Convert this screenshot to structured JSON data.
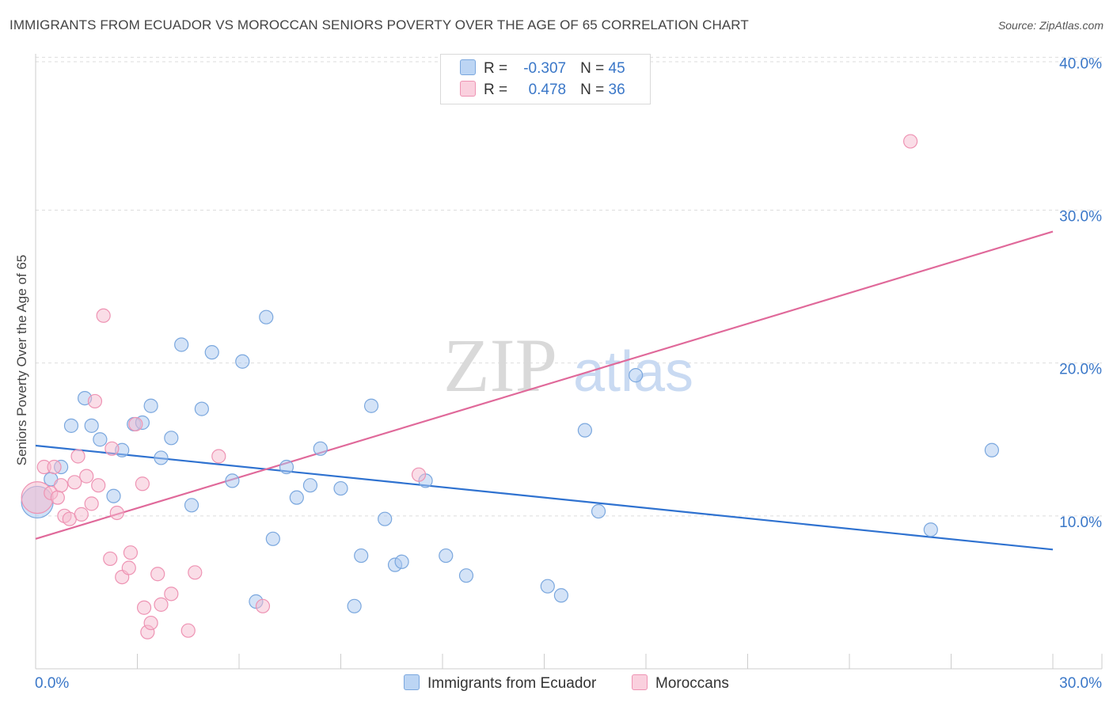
{
  "header": {
    "title": "IMMIGRANTS FROM ECUADOR VS MOROCCAN SENIORS POVERTY OVER THE AGE OF 65 CORRELATION CHART",
    "source": "Source: ZipAtlas.com"
  },
  "watermark": {
    "part1": "ZIP",
    "part2": "atlas"
  },
  "legend_top": [
    {
      "r_label": "R =",
      "r_value": "-0.307",
      "n_label": "N =",
      "n_value": "45"
    },
    {
      "r_label": "R =",
      "r_value": "0.478",
      "n_label": "N =",
      "n_value": "36"
    }
  ],
  "colors": {
    "blue_fill": "#a9c8f0",
    "blue_stroke": "#7aa7de",
    "blue_line": "#2f72d0",
    "pink_fill": "#f6bcd0",
    "pink_stroke": "#ee93b3",
    "pink_line": "#e0699a",
    "tick_label": "#3a77c8",
    "grid": "#dddddd"
  },
  "chart_data": {
    "type": "scatter",
    "title": "IMMIGRANTS FROM ECUADOR VS MOROCCAN SENIORS POVERTY OVER THE AGE OF 65 CORRELATION CHART",
    "xlabel": "",
    "ylabel": "Seniors Poverty Over the Age of 65",
    "xlim": [
      0,
      30
    ],
    "ylim": [
      0,
      41
    ],
    "x_tick_labels": [
      "0.0%",
      "30.0%"
    ],
    "y_ticks": [
      10,
      20,
      30,
      40
    ],
    "y_tick_labels": [
      "10.0%",
      "20.0%",
      "30.0%",
      "40.0%"
    ],
    "grid": true,
    "series": [
      {
        "name": "Immigrants from Ecuador",
        "color": "blue",
        "r": -0.307,
        "n": 45,
        "trend": {
          "x": [
            0,
            30
          ],
          "y": [
            14.6,
            7.8
          ]
        },
        "points": [
          {
            "x": 0.05,
            "y": 10.9,
            "big": true
          },
          {
            "x": 0.45,
            "y": 12.4
          },
          {
            "x": 0.75,
            "y": 13.2
          },
          {
            "x": 1.05,
            "y": 15.9
          },
          {
            "x": 1.45,
            "y": 17.7
          },
          {
            "x": 1.65,
            "y": 15.9
          },
          {
            "x": 1.9,
            "y": 15.0
          },
          {
            "x": 2.3,
            "y": 11.3
          },
          {
            "x": 2.55,
            "y": 14.3
          },
          {
            "x": 2.9,
            "y": 16.0
          },
          {
            "x": 3.15,
            "y": 16.1
          },
          {
            "x": 3.4,
            "y": 17.2
          },
          {
            "x": 3.7,
            "y": 13.8
          },
          {
            "x": 4.0,
            "y": 15.1
          },
          {
            "x": 4.3,
            "y": 21.2
          },
          {
            "x": 4.6,
            "y": 10.7
          },
          {
            "x": 4.9,
            "y": 17.0
          },
          {
            "x": 5.2,
            "y": 20.7
          },
          {
            "x": 5.8,
            "y": 12.3
          },
          {
            "x": 6.1,
            "y": 20.1
          },
          {
            "x": 6.5,
            "y": 4.4
          },
          {
            "x": 6.8,
            "y": 23.0
          },
          {
            "x": 7.0,
            "y": 8.5
          },
          {
            "x": 7.4,
            "y": 13.2
          },
          {
            "x": 7.7,
            "y": 11.2
          },
          {
            "x": 8.1,
            "y": 12.0
          },
          {
            "x": 8.4,
            "y": 14.4
          },
          {
            "x": 9.0,
            "y": 11.8
          },
          {
            "x": 9.4,
            "y": 4.1
          },
          {
            "x": 9.6,
            "y": 7.4
          },
          {
            "x": 9.9,
            "y": 17.2
          },
          {
            "x": 10.3,
            "y": 9.8
          },
          {
            "x": 10.6,
            "y": 6.8
          },
          {
            "x": 10.8,
            "y": 7.0
          },
          {
            "x": 11.5,
            "y": 12.3
          },
          {
            "x": 12.1,
            "y": 7.4
          },
          {
            "x": 12.7,
            "y": 6.1
          },
          {
            "x": 15.1,
            "y": 5.4
          },
          {
            "x": 15.5,
            "y": 4.8
          },
          {
            "x": 16.2,
            "y": 15.6
          },
          {
            "x": 16.6,
            "y": 10.3
          },
          {
            "x": 17.7,
            "y": 19.2
          },
          {
            "x": 26.4,
            "y": 9.1
          },
          {
            "x": 28.2,
            "y": 14.3
          },
          {
            "x": 1.3,
            "y": 17.8,
            "hidden": true
          }
        ]
      },
      {
        "name": "Moroccans",
        "color": "pink",
        "r": 0.478,
        "n": 36,
        "trend": {
          "x": [
            0,
            30
          ],
          "y": [
            8.5,
            28.6
          ]
        },
        "points": [
          {
            "x": 0.05,
            "y": 11.2,
            "big": true
          },
          {
            "x": 0.25,
            "y": 13.2
          },
          {
            "x": 0.45,
            "y": 11.5
          },
          {
            "x": 0.55,
            "y": 13.2
          },
          {
            "x": 0.65,
            "y": 11.2
          },
          {
            "x": 0.75,
            "y": 12.0
          },
          {
            "x": 0.85,
            "y": 10.0
          },
          {
            "x": 1.0,
            "y": 9.8
          },
          {
            "x": 1.15,
            "y": 12.2
          },
          {
            "x": 1.25,
            "y": 13.9
          },
          {
            "x": 1.35,
            "y": 10.1
          },
          {
            "x": 1.5,
            "y": 12.6
          },
          {
            "x": 1.65,
            "y": 10.8
          },
          {
            "x": 1.75,
            "y": 17.5
          },
          {
            "x": 1.85,
            "y": 12.0
          },
          {
            "x": 2.0,
            "y": 23.1
          },
          {
            "x": 2.2,
            "y": 7.2
          },
          {
            "x": 2.25,
            "y": 14.4
          },
          {
            "x": 2.4,
            "y": 10.2
          },
          {
            "x": 2.55,
            "y": 6.0
          },
          {
            "x": 2.75,
            "y": 6.6
          },
          {
            "x": 2.8,
            "y": 7.6
          },
          {
            "x": 2.95,
            "y": 16.0
          },
          {
            "x": 3.15,
            "y": 12.1
          },
          {
            "x": 3.2,
            "y": 4.0
          },
          {
            "x": 3.3,
            "y": 2.4
          },
          {
            "x": 3.4,
            "y": 3.0
          },
          {
            "x": 3.6,
            "y": 6.2
          },
          {
            "x": 3.7,
            "y": 4.2
          },
          {
            "x": 4.0,
            "y": 4.9
          },
          {
            "x": 4.5,
            "y": 2.5
          },
          {
            "x": 4.7,
            "y": 6.3
          },
          {
            "x": 5.4,
            "y": 13.9
          },
          {
            "x": 6.7,
            "y": 4.1
          },
          {
            "x": 11.3,
            "y": 12.7
          },
          {
            "x": 25.8,
            "y": 34.5
          }
        ]
      }
    ]
  },
  "bottom_legend": [
    {
      "label": "Immigrants from Ecuador"
    },
    {
      "label": "Moroccans"
    }
  ]
}
